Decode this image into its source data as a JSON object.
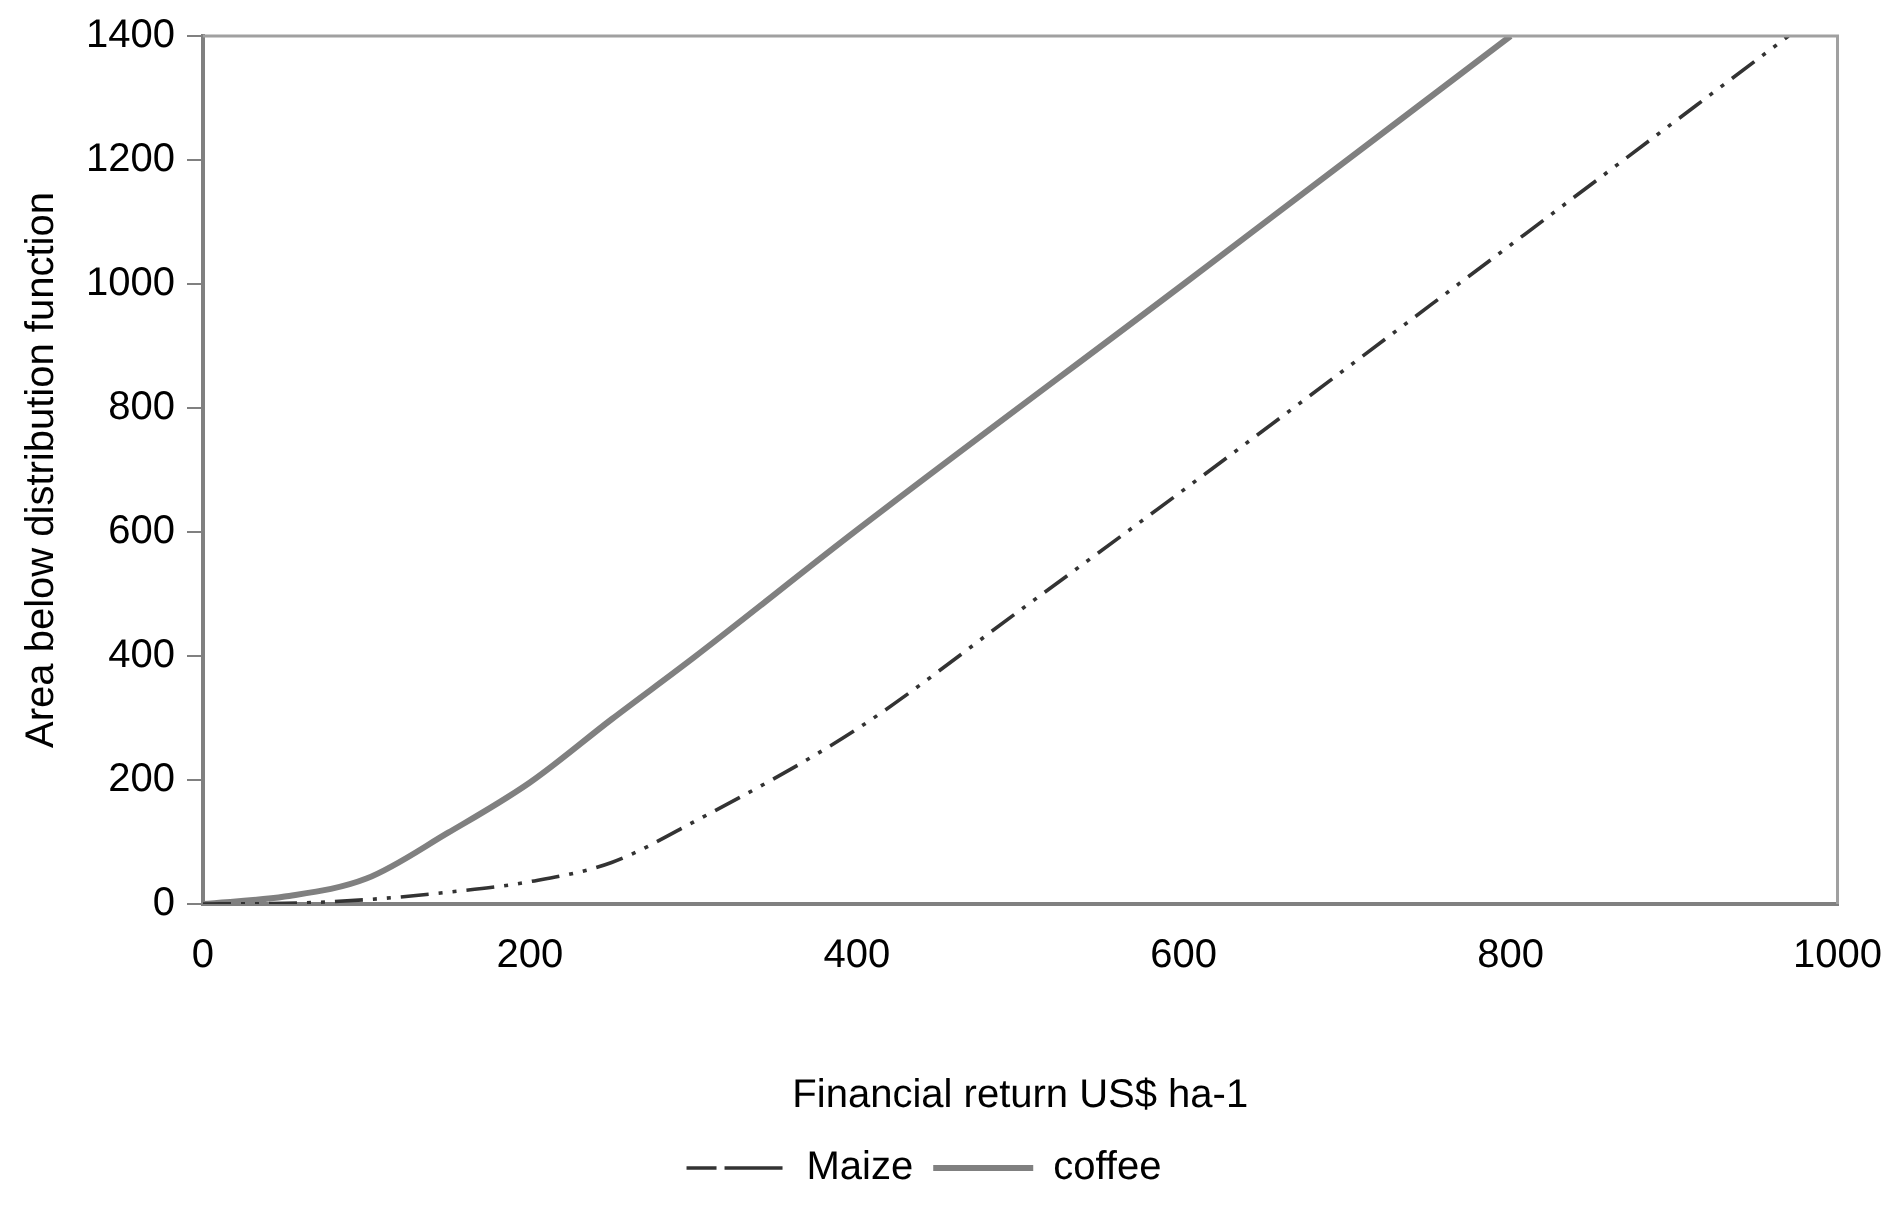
{
  "chart_data": {
    "type": "line",
    "xlabel": "Financial return US$ ha-1",
    "ylabel": "Area below distribution function",
    "xlim": [
      0,
      1000
    ],
    "xticks": [
      0,
      200,
      400,
      600,
      800,
      1000
    ],
    "ylim": [
      0,
      1400
    ],
    "yticks": [
      0,
      200,
      400,
      600,
      800,
      1000,
      1200,
      1400
    ],
    "grid": false,
    "legend": "bottom",
    "marker": "none",
    "series": [
      {
        "name": "Maize",
        "color": "#333333",
        "line_style": "dashdotdot",
        "x": [
          0,
          50,
          100,
          150,
          200,
          250,
          300,
          400,
          500,
          600,
          800,
          970
        ],
        "values": [
          0,
          1,
          7,
          19,
          36,
          67,
          132,
          282,
          474,
          668,
          1063,
          1400
        ]
      },
      {
        "name": "coffee",
        "color": "#808080",
        "line_style": "solid",
        "x": [
          0,
          50,
          100,
          150,
          200,
          250,
          300,
          400,
          600,
          800
        ],
        "values": [
          0,
          12,
          41,
          115,
          196,
          298,
          397,
          603,
          1000,
          1400
        ]
      }
    ]
  }
}
